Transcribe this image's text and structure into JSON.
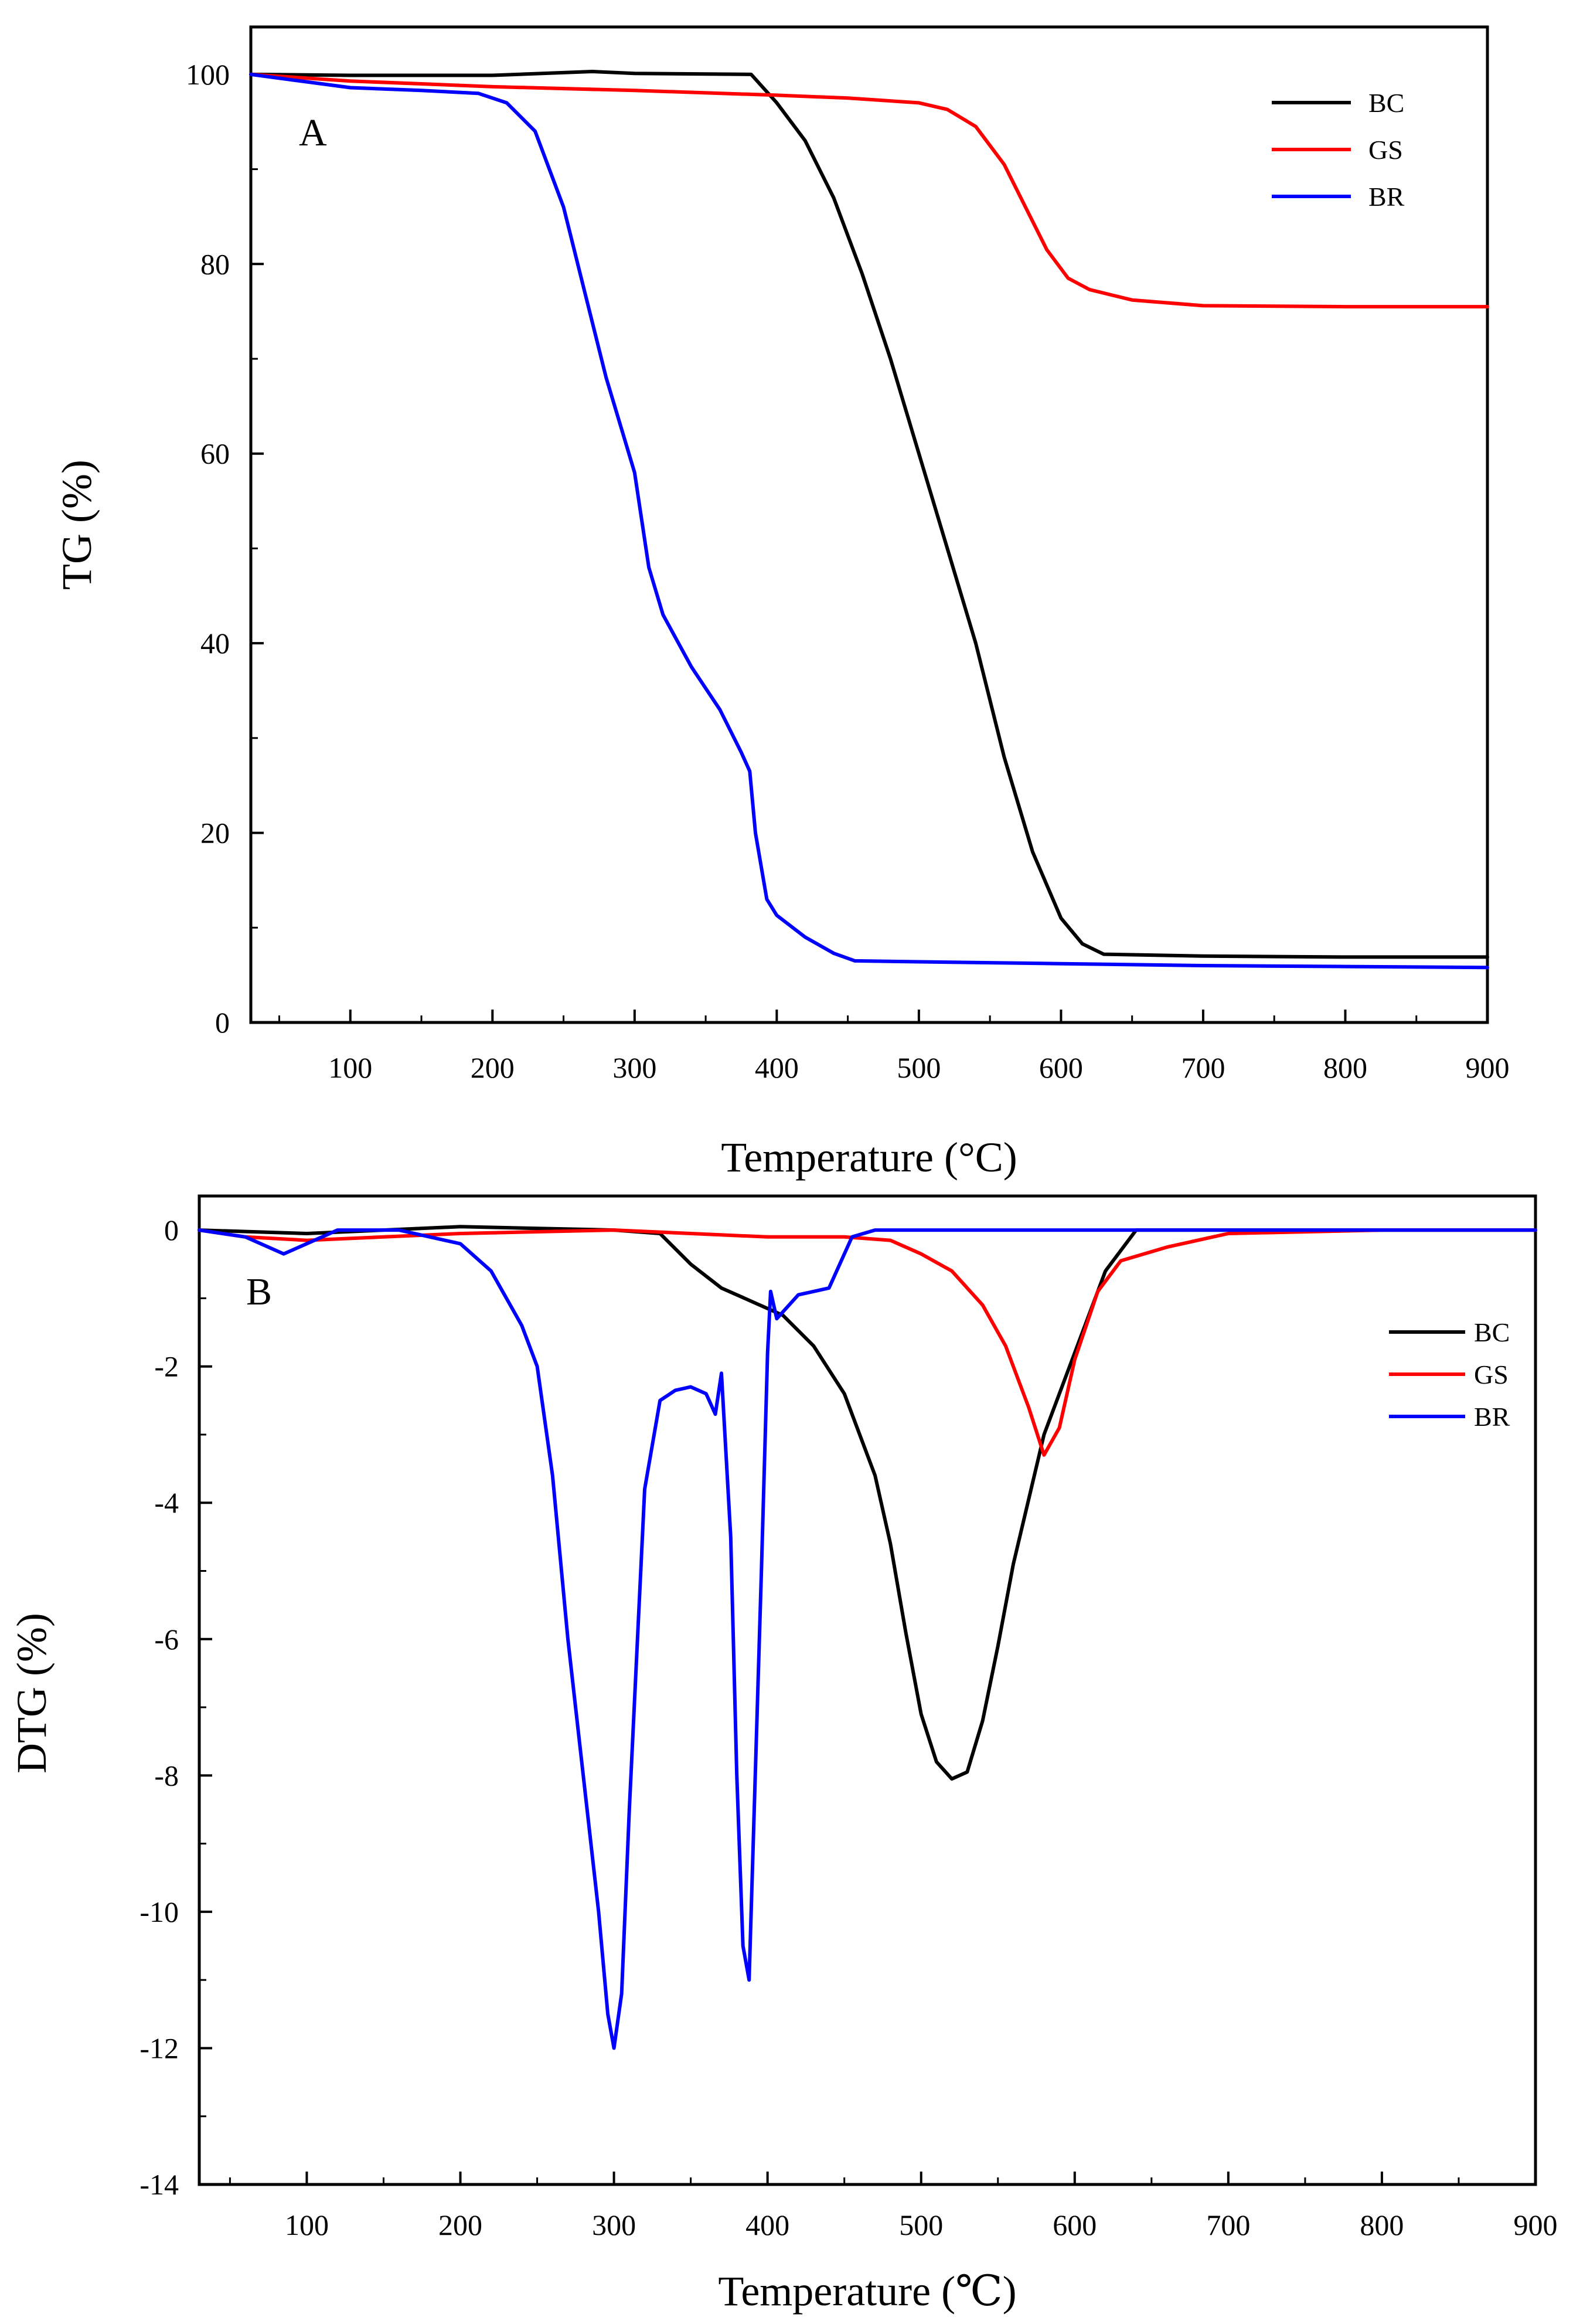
{
  "chart_data": [
    {
      "type": "line",
      "panel_label": "A",
      "xlabel": "Temperature (°C)",
      "ylabel": "TG (%)",
      "xlim": [
        30,
        900
      ],
      "ylim": [
        0,
        105
      ],
      "xticks": [
        100,
        200,
        300,
        400,
        500,
        600,
        700,
        800,
        900
      ],
      "yticks": [
        0,
        20,
        40,
        60,
        80,
        100
      ],
      "xtick_labels": [
        "100",
        "200",
        "300",
        "400",
        "500",
        "600",
        "700",
        "800",
        "900"
      ],
      "ytick_labels": [
        "0",
        "20",
        "40",
        "60",
        "80",
        "100"
      ],
      "legend_position": "top-right",
      "series": [
        {
          "name": "BC",
          "color": "#000000",
          "x": [
            30,
            100,
            200,
            270,
            300,
            382,
            400,
            420,
            440,
            460,
            480,
            500,
            520,
            540,
            560,
            580,
            600,
            615,
            630,
            700,
            800,
            900
          ],
          "y": [
            100,
            99.9,
            99.9,
            100.3,
            100.1,
            100.0,
            97.0,
            93.0,
            87.0,
            79.0,
            70.0,
            60.0,
            50.0,
            40.0,
            28.0,
            18.0,
            11.0,
            8.3,
            7.2,
            7.0,
            6.9,
            6.9
          ]
        },
        {
          "name": "GS",
          "color": "#ff0000",
          "x": [
            30,
            100,
            200,
            300,
            400,
            450,
            500,
            520,
            540,
            560,
            575,
            590,
            605,
            620,
            650,
            700,
            800,
            900
          ],
          "y": [
            100,
            99.3,
            98.7,
            98.3,
            97.8,
            97.5,
            97.0,
            96.3,
            94.5,
            90.5,
            86.0,
            81.5,
            78.5,
            77.3,
            76.2,
            75.6,
            75.5,
            75.5
          ]
        },
        {
          "name": "BR",
          "color": "#0000ff",
          "x": [
            30,
            60,
            100,
            150,
            190,
            210,
            230,
            250,
            265,
            280,
            290,
            300,
            310,
            320,
            340,
            360,
            375,
            381,
            385,
            393,
            400,
            420,
            440,
            455,
            500,
            600,
            700,
            800,
            900
          ],
          "y": [
            100,
            99.4,
            98.6,
            98.3,
            98.0,
            97.0,
            94.0,
            86.0,
            77.0,
            68.0,
            63.0,
            58.0,
            48.0,
            43.0,
            37.5,
            33.0,
            28.5,
            26.5,
            20.0,
            13.0,
            11.3,
            9.0,
            7.3,
            6.5,
            6.4,
            6.2,
            6.0,
            5.9,
            5.8
          ]
        }
      ]
    },
    {
      "type": "line",
      "panel_label": "B",
      "xlabel": "Temperature (℃)",
      "ylabel": "DTG (%)",
      "xlim": [
        30,
        900
      ],
      "ylim": [
        -14,
        0.5
      ],
      "xticks": [
        100,
        200,
        300,
        400,
        500,
        600,
        700,
        800,
        900
      ],
      "yticks": [
        0,
        -2,
        -4,
        -6,
        -8,
        -10,
        -12,
        -14
      ],
      "xtick_labels": [
        "100",
        "200",
        "300",
        "400",
        "500",
        "600",
        "700",
        "800",
        "900"
      ],
      "ytick_labels": [
        "0",
        "-2",
        "-4",
        "-6",
        "-8",
        "-10",
        "-12",
        "-14"
      ],
      "legend_position": "right",
      "series": [
        {
          "name": "BC",
          "color": "#000000",
          "x": [
            30,
            100,
            200,
            300,
            330,
            350,
            370,
            390,
            410,
            430,
            450,
            470,
            480,
            490,
            500,
            510,
            520,
            530,
            540,
            550,
            560,
            580,
            600,
            620,
            640,
            700,
            800,
            900
          ],
          "y": [
            0,
            -0.05,
            0.05,
            0,
            -0.05,
            -0.5,
            -0.85,
            -1.05,
            -1.25,
            -1.7,
            -2.4,
            -3.6,
            -4.6,
            -5.9,
            -7.1,
            -7.8,
            -8.05,
            -7.95,
            -7.2,
            -6.1,
            -4.9,
            -3.0,
            -1.8,
            -0.6,
            0,
            0,
            0,
            0
          ]
        },
        {
          "name": "GS",
          "color": "#ff0000",
          "x": [
            30,
            60,
            100,
            200,
            300,
            400,
            450,
            480,
            500,
            520,
            540,
            555,
            570,
            580,
            590,
            600,
            615,
            630,
            660,
            700,
            800,
            900
          ],
          "y": [
            0,
            -0.1,
            -0.15,
            -0.05,
            0,
            -0.1,
            -0.1,
            -0.15,
            -0.35,
            -0.6,
            -1.1,
            -1.7,
            -2.6,
            -3.3,
            -2.9,
            -1.9,
            -0.9,
            -0.45,
            -0.25,
            -0.05,
            0,
            0
          ]
        },
        {
          "name": "BR",
          "color": "#0000ff",
          "x": [
            30,
            60,
            85,
            120,
            160,
            200,
            220,
            240,
            250,
            260,
            270,
            280,
            290,
            296,
            300,
            305,
            310,
            320,
            330,
            340,
            350,
            360,
            366,
            370,
            376,
            380,
            384,
            388,
            392,
            396,
            400,
            402,
            406,
            420,
            440,
            455,
            470,
            500,
            600,
            700,
            800,
            900
          ],
          "y": [
            0,
            -0.1,
            -0.35,
            0,
            0,
            -0.2,
            -0.6,
            -1.4,
            -2.0,
            -3.6,
            -6.0,
            -8.0,
            -10.0,
            -11.5,
            -12.0,
            -11.2,
            -8.5,
            -3.8,
            -2.5,
            -2.35,
            -2.3,
            -2.4,
            -2.7,
            -2.1,
            -4.5,
            -8.0,
            -10.5,
            -11.0,
            -8.0,
            -5.0,
            -1.8,
            -0.9,
            -1.3,
            -0.95,
            -0.85,
            -0.1,
            0,
            0,
            0,
            0,
            0,
            0
          ]
        }
      ]
    }
  ]
}
